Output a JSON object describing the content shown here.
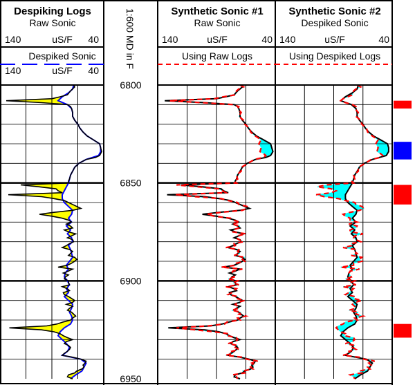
{
  "chart_data": {
    "type": "well-log",
    "depth_axis": {
      "label": "1:600 MD in F",
      "range": [
        6800,
        6950
      ],
      "major_ticks": [
        "6800",
        "6850",
        "6900",
        "6950"
      ]
    },
    "tracks": [
      {
        "title": "Despiking Logs",
        "curves": [
          {
            "name": "Raw Sonic",
            "unit": "uS/F",
            "left": "140",
            "right": "40",
            "color": "#000000",
            "style": "solid"
          },
          {
            "name": "Despiked Sonic",
            "unit": "uS/F",
            "left": "140",
            "right": "40",
            "color": "#0000ff",
            "style": "long-dash"
          }
        ],
        "fill_color": "#ffff00"
      },
      {
        "title": "Synthetic Sonic #1",
        "curves": [
          {
            "name": "Raw Sonic",
            "unit": "uS/F",
            "left": "140",
            "right": "40",
            "color": "#000000",
            "style": "solid"
          },
          {
            "name": "Using Raw Logs",
            "unit": "",
            "left": "",
            "right": "",
            "color": "#ff0000",
            "style": "dashed"
          }
        ],
        "fill_color": "#00ffff"
      },
      {
        "title": "Synthetic Sonic #2",
        "curves": [
          {
            "name": "Despiked Sonic",
            "unit": "uS/F",
            "left": "140",
            "right": "40",
            "color": "#000000",
            "style": "solid"
          },
          {
            "name": "Using Despiked Logs",
            "unit": "",
            "left": "",
            "right": "",
            "color": "#ff0000",
            "style": "dashed"
          }
        ],
        "fill_color": "#00ffff"
      }
    ],
    "series": {
      "raw_sonic": {
        "depth": [
          6800,
          6801,
          6802,
          6803,
          6805,
          6806,
          6807,
          6808,
          6809,
          6810,
          6811,
          6812,
          6814,
          6816,
          6818,
          6820,
          6822,
          6824,
          6826,
          6828,
          6830,
          6832,
          6834,
          6835,
          6836,
          6837,
          6838,
          6840,
          6842,
          6844,
          6846,
          6848,
          6849,
          6850,
          6851,
          6852,
          6853,
          6854,
          6855,
          6856,
          6857,
          6858,
          6859,
          6860,
          6861,
          6862,
          6863,
          6864,
          6865,
          6866,
          6867,
          6868,
          6869,
          6870,
          6871,
          6872,
          6873,
          6874,
          6875,
          6876,
          6877,
          6878,
          6879,
          6880,
          6881,
          6882,
          6883,
          6884,
          6885,
          6886,
          6887,
          6888,
          6889,
          6890,
          6891,
          6892,
          6893,
          6894,
          6895,
          6896,
          6897,
          6898,
          6899,
          6900,
          6901,
          6902,
          6903,
          6904,
          6905,
          6906,
          6907,
          6908,
          6909,
          6910,
          6911,
          6912,
          6913,
          6914,
          6915,
          6916,
          6917,
          6918,
          6919,
          6920,
          6921,
          6922,
          6923,
          6924,
          6925,
          6926,
          6927,
          6928,
          6929,
          6930,
          6931,
          6932,
          6933,
          6934,
          6935,
          6936,
          6937,
          6938,
          6939,
          6940,
          6941,
          6942,
          6943,
          6944,
          6945,
          6946,
          6947,
          6948,
          6949,
          6950
        ],
        "values": [
          69,
          68,
          70,
          72,
          75,
          82,
          90,
          134,
          100,
          75,
          72,
          71,
          70,
          70,
          68,
          65,
          63,
          60,
          56,
          50,
          44,
          43,
          42,
          43,
          44,
          48,
          57,
          64,
          68,
          70,
          72,
          73,
          74,
          74,
          120,
          102,
          86,
          84,
          80,
          132,
          100,
          88,
          78,
          74,
          70,
          66,
          62,
          70,
          88,
          102,
          90,
          80,
          74,
          71,
          76,
          72,
          70,
          78,
          74,
          67,
          71,
          75,
          70,
          69,
          73,
          76,
          80,
          73,
          70,
          72,
          74,
          68,
          66,
          68,
          71,
          75,
          84,
          70,
          74,
          79,
          74,
          77,
          78,
          74,
          74,
          73,
          80,
          75,
          73,
          79,
          78,
          74,
          71,
          68,
          70,
          76,
          70,
          73,
          75,
          71,
          69,
          67,
          70,
          72,
          79,
          85,
          95,
          131,
          100,
          88,
          82,
          79,
          75,
          70,
          76,
          78,
          74,
          72,
          73,
          75,
          78,
          80,
          70,
          62,
          57,
          58,
          60,
          59,
          61,
          66,
          68,
          74,
          75,
          70
        ]
      },
      "despiked_sonic": {
        "depth": [
          6800,
          6802,
          6804,
          6806,
          6808,
          6810,
          6812,
          6814,
          6816,
          6818,
          6820,
          6822,
          6824,
          6826,
          6828,
          6830,
          6832,
          6834,
          6836,
          6838,
          6840,
          6842,
          6844,
          6846,
          6848,
          6850,
          6852,
          6854,
          6856,
          6858,
          6860,
          6862,
          6864,
          6866,
          6868,
          6870,
          6872,
          6874,
          6876,
          6878,
          6880,
          6882,
          6884,
          6886,
          6888,
          6890,
          6892,
          6894,
          6896,
          6898,
          6900,
          6902,
          6904,
          6906,
          6908,
          6910,
          6912,
          6914,
          6916,
          6918,
          6920,
          6922,
          6924,
          6926,
          6928,
          6930,
          6932,
          6934,
          6936,
          6938,
          6940,
          6942,
          6944,
          6946,
          6948,
          6950
        ],
        "values": [
          69,
          70,
          74,
          80,
          84,
          75,
          71,
          70,
          70,
          68,
          65,
          63,
          60,
          56,
          50,
          44,
          43,
          43,
          45,
          57,
          64,
          68,
          70,
          72,
          73,
          74,
          76,
          78,
          80,
          80,
          78,
          74,
          70,
          71,
          74,
          71,
          76,
          72,
          75,
          71,
          70,
          74,
          72,
          71,
          70,
          73,
          76,
          74,
          77,
          78,
          75,
          73,
          76,
          74,
          78,
          74,
          70,
          71,
          73,
          71,
          70,
          72,
          78,
          82,
          84,
          80,
          76,
          73,
          75,
          80,
          62,
          57,
          59,
          61,
          67,
          72
        ]
      },
      "synthetic_raw_logs": {
        "depth": [
          6800,
          6801,
          6802,
          6803,
          6805,
          6806,
          6807,
          6808,
          6809,
          6810,
          6811,
          6812,
          6814,
          6816,
          6818,
          6820,
          6822,
          6824,
          6826,
          6828,
          6830,
          6832,
          6834,
          6835,
          6836,
          6837,
          6838,
          6840,
          6842,
          6844,
          6846,
          6848,
          6849,
          6850,
          6851,
          6852,
          6853,
          6854,
          6855,
          6856,
          6857,
          6858,
          6859,
          6860,
          6861,
          6862,
          6863,
          6864,
          6865,
          6866,
          6867,
          6868,
          6869,
          6870,
          6871,
          6872,
          6873,
          6874,
          6875,
          6876,
          6877,
          6878,
          6879,
          6880,
          6881,
          6882,
          6883,
          6884,
          6885,
          6886,
          6887,
          6888,
          6889,
          6890,
          6891,
          6892,
          6893,
          6894,
          6895,
          6896,
          6897,
          6898,
          6899,
          6900,
          6901,
          6902,
          6903,
          6904,
          6905,
          6906,
          6907,
          6908,
          6909,
          6910,
          6911,
          6912,
          6913,
          6914,
          6915,
          6916,
          6917,
          6918,
          6919,
          6920,
          6921,
          6922,
          6923,
          6924,
          6925,
          6926,
          6927,
          6928,
          6929,
          6930,
          6931,
          6932,
          6933,
          6934,
          6935,
          6936,
          6937,
          6938,
          6939,
          6940,
          6941,
          6942,
          6943,
          6944,
          6945,
          6946,
          6947,
          6948,
          6949,
          6950
        ],
        "values": [
          70,
          67,
          71,
          73,
          74,
          84,
          92,
          130,
          103,
          76,
          71,
          72,
          69,
          71,
          67,
          66,
          62,
          61,
          57,
          52,
          54,
          52,
          53,
          50,
          48,
          50,
          58,
          63,
          69,
          69,
          73,
          72,
          75,
          73,
          124,
          106,
          88,
          85,
          82,
          125,
          108,
          86,
          80,
          72,
          71,
          64,
          64,
          68,
          86,
          98,
          92,
          78,
          76,
          70,
          77,
          70,
          71,
          76,
          76,
          65,
          72,
          73,
          71,
          67,
          75,
          74,
          82,
          71,
          72,
          70,
          75,
          66,
          68,
          66,
          73,
          73,
          86,
          68,
          76,
          77,
          76,
          75,
          80,
          72,
          76,
          71,
          82,
          73,
          75,
          77,
          80,
          72,
          73,
          66,
          72,
          74,
          72,
          71,
          77,
          69,
          71,
          65,
          72,
          70,
          81,
          83,
          97,
          124,
          108,
          92,
          80,
          81,
          73,
          72,
          74,
          80,
          72,
          74,
          71,
          77,
          76,
          82,
          68,
          64,
          55,
          60,
          58,
          61,
          59,
          68,
          66,
          76,
          73,
          72
        ]
      },
      "synthetic_despiked_logs": {
        "depth": [
          6800,
          6801,
          6802,
          6803,
          6805,
          6806,
          6807,
          6808,
          6809,
          6810,
          6811,
          6812,
          6814,
          6816,
          6818,
          6820,
          6822,
          6824,
          6826,
          6828,
          6830,
          6832,
          6834,
          6835,
          6836,
          6837,
          6838,
          6840,
          6842,
          6844,
          6846,
          6848,
          6849,
          6850,
          6851,
          6852,
          6853,
          6854,
          6855,
          6856,
          6857,
          6858,
          6859,
          6860,
          6861,
          6862,
          6863,
          6864,
          6865,
          6866,
          6867,
          6868,
          6869,
          6870,
          6871,
          6872,
          6873,
          6874,
          6875,
          6876,
          6877,
          6878,
          6879,
          6880,
          6881,
          6882,
          6883,
          6884,
          6885,
          6886,
          6887,
          6888,
          6889,
          6890,
          6891,
          6892,
          6893,
          6894,
          6895,
          6896,
          6897,
          6898,
          6899,
          6900,
          6901,
          6902,
          6903,
          6904,
          6905,
          6906,
          6907,
          6908,
          6909,
          6910,
          6911,
          6912,
          6913,
          6914,
          6915,
          6916,
          6917,
          6918,
          6919,
          6920,
          6921,
          6922,
          6923,
          6924,
          6925,
          6926,
          6927,
          6928,
          6929,
          6930,
          6931,
          6932,
          6933,
          6934,
          6935,
          6936,
          6937,
          6938,
          6939,
          6940,
          6941,
          6942,
          6943,
          6944,
          6945,
          6946,
          6947,
          6948,
          6949,
          6950
        ],
        "values": [
          70,
          67,
          71,
          73,
          74,
          78,
          82,
          84,
          80,
          74,
          71,
          72,
          69,
          71,
          67,
          66,
          62,
          61,
          57,
          52,
          54,
          52,
          53,
          50,
          48,
          50,
          58,
          63,
          69,
          69,
          73,
          72,
          75,
          73,
          96,
          104,
          92,
          88,
          92,
          105,
          98,
          86,
          80,
          72,
          71,
          66,
          64,
          68,
          76,
          82,
          80,
          76,
          76,
          70,
          77,
          70,
          71,
          76,
          76,
          65,
          72,
          73,
          71,
          67,
          75,
          74,
          82,
          71,
          72,
          70,
          75,
          66,
          68,
          66,
          73,
          73,
          84,
          68,
          76,
          77,
          76,
          75,
          80,
          72,
          76,
          71,
          82,
          73,
          75,
          77,
          80,
          72,
          73,
          66,
          72,
          74,
          72,
          71,
          77,
          69,
          71,
          65,
          72,
          70,
          80,
          82,
          86,
          88,
          86,
          84,
          80,
          81,
          73,
          72,
          74,
          80,
          72,
          74,
          71,
          77,
          76,
          82,
          68,
          64,
          55,
          60,
          58,
          61,
          59,
          68,
          66,
          76,
          73,
          72
        ]
      }
    },
    "flags": [
      {
        "from": 6808,
        "to": 6812,
        "color": "#ff0000"
      },
      {
        "from": 6829,
        "to": 6838,
        "color": "#0000ff"
      },
      {
        "from": 6851,
        "to": 6861,
        "color": "#ff0000"
      },
      {
        "from": 6922,
        "to": 6929,
        "color": "#ff0000"
      }
    ]
  }
}
